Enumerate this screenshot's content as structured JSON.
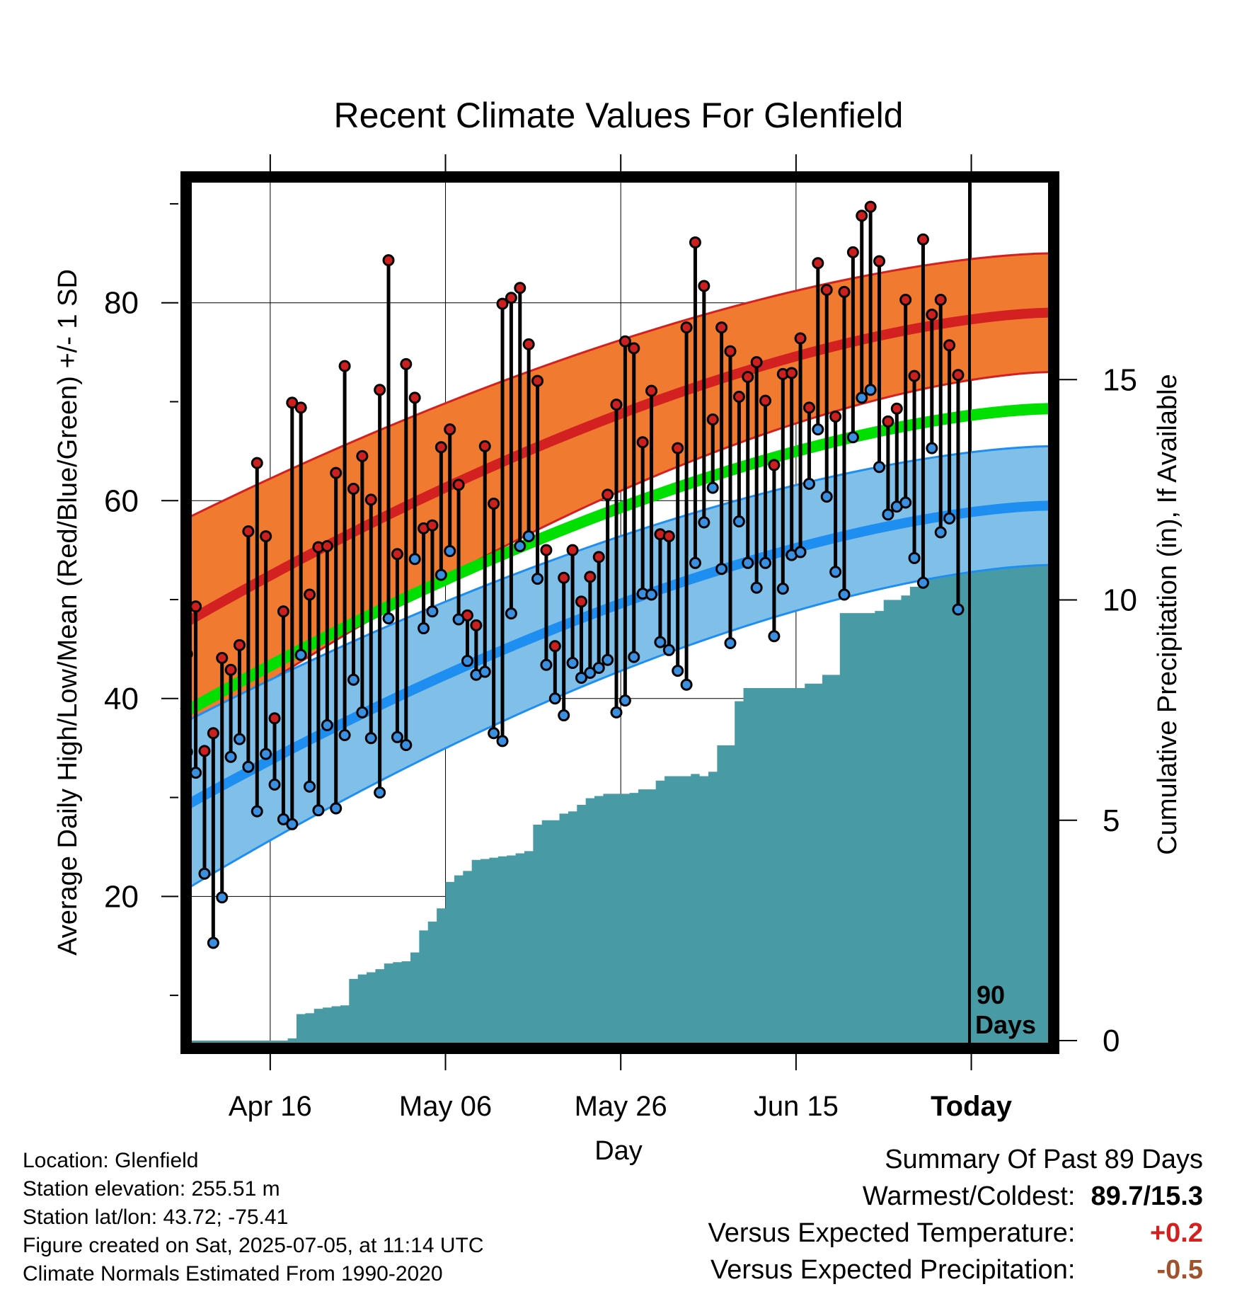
{
  "title": "Recent Climate Values For Glenfield",
  "axes": {
    "y_left_label": "Average Daily High/Low/Mean (Red/Blue/Green) +/- 1 SD",
    "y_right_label": "Cumulative Precipitation (in), If Available",
    "x_label": "Day",
    "x_ticks": [
      "Apr 16",
      "May 06",
      "May 26",
      "Jun 15",
      "Today"
    ],
    "y_left_ticks": [
      "20",
      "40",
      "60",
      "80"
    ],
    "y_right_ticks": [
      "0",
      "5",
      "10",
      "15"
    ],
    "days_annotation_num": "90",
    "days_annotation_text": "Days"
  },
  "info": {
    "location": "Location: Glenfield",
    "elevation": "Station elevation: 255.51 m",
    "latlon": "Station lat/lon: 43.72; -75.41",
    "created": "Figure created on Sat, 2025-07-05, at 11:14 UTC",
    "normals": "Climate Normals Estimated From 1990-2020"
  },
  "summary": {
    "title": "Summary Of Past 89 Days",
    "warmest_label": "Warmest/Coldest:",
    "warmest_value": "89.7/15.3",
    "temp_label": "Versus Expected Temperature:",
    "temp_value": "+0.2",
    "precip_label": "Versus Expected Precipitation:",
    "precip_value": "-0.5"
  },
  "colors": {
    "high_band": "#f07a30",
    "high_line": "#d32020",
    "low_band": "#80c0e8",
    "low_line": "#1e8ff0",
    "mean_line": "#00e000",
    "precip_fill": "#489aa4",
    "high_marker": "#cc2020",
    "low_marker": "#3a8fe0",
    "temp_value": "#d32020",
    "precip_value": "#a0522d"
  },
  "chart_data": {
    "type": "line",
    "x_start": "Apr 06",
    "x_today": "Jul 05",
    "x_end": "Jul 14",
    "ylim_left": [
      5,
      93
    ],
    "ylim_right": [
      0,
      20
    ],
    "normals_x_days": [
      0,
      99
    ],
    "normals": {
      "high_mean": [
        47.5,
        79.0
      ],
      "high_upper": [
        58.0,
        85.0
      ],
      "high_lower": [
        36.0,
        73.0
      ],
      "low_mean": [
        29.0,
        59.5
      ],
      "low_upper": [
        37.5,
        65.5
      ],
      "low_lower": [
        20.5,
        53.5
      ],
      "mean": [
        38.5,
        69.3
      ]
    },
    "daily_high": [
      44.5,
      49.3,
      34.7,
      36.5,
      44.1,
      42.9,
      45.4,
      56.9,
      63.8,
      56.4,
      38.0,
      48.8,
      69.9,
      69.4,
      50.5,
      55.3,
      55.4,
      62.8,
      73.6,
      61.2,
      64.5,
      60.1,
      71.2,
      84.3,
      54.6,
      73.8,
      70.4,
      57.2,
      57.5,
      65.4,
      67.2,
      61.6,
      48.4,
      47.4,
      65.5,
      59.7,
      79.9,
      80.5,
      81.5,
      75.8,
      72.1,
      55.0,
      45.3,
      52.2,
      55.0,
      49.8,
      52.3,
      54.3,
      60.6,
      69.7,
      76.1,
      75.4,
      65.9,
      71.1,
      56.6,
      56.4,
      65.3,
      77.5,
      86.1,
      81.7,
      68.2,
      77.5,
      75.1,
      70.5,
      72.5,
      74.0,
      70.1,
      63.6,
      72.8,
      72.9,
      76.4,
      69.4,
      84.0,
      81.3,
      68.5,
      81.1,
      85.1,
      88.8,
      89.7,
      84.2,
      68.0,
      69.3,
      80.3,
      72.6,
      86.4,
      78.8,
      80.3,
      75.7,
      72.7
    ],
    "daily_low": [
      34.6,
      32.5,
      22.3,
      15.3,
      19.9,
      34.1,
      35.9,
      33.1,
      28.6,
      34.4,
      31.3,
      27.8,
      27.3,
      44.4,
      31.1,
      28.7,
      37.3,
      28.9,
      36.3,
      41.9,
      38.6,
      36.0,
      30.5,
      48.1,
      36.1,
      35.3,
      54.1,
      47.1,
      48.8,
      52.5,
      54.9,
      48.0,
      43.8,
      42.4,
      42.7,
      36.5,
      35.7,
      48.6,
      55.4,
      56.4,
      52.1,
      43.4,
      40.0,
      38.3,
      43.6,
      42.1,
      42.6,
      43.1,
      43.9,
      38.6,
      39.8,
      44.2,
      50.6,
      50.5,
      45.7,
      44.9,
      42.8,
      41.4,
      53.7,
      57.8,
      61.3,
      53.1,
      45.6,
      57.9,
      53.7,
      51.2,
      53.7,
      46.3,
      51.1,
      54.5,
      54.8,
      61.7,
      67.2,
      60.4,
      52.8,
      50.5,
      66.4,
      70.4,
      71.2,
      63.4,
      58.6,
      59.4,
      59.8,
      54.2,
      51.7,
      65.3,
      56.8,
      58.2,
      49.0
    ],
    "cumulative_precip_in": [
      0,
      0,
      0,
      0,
      0,
      0,
      0,
      0,
      0,
      0,
      0,
      0,
      0.05,
      0.6,
      0.62,
      0.72,
      0.75,
      0.78,
      0.8,
      1.4,
      1.5,
      1.55,
      1.62,
      1.75,
      1.78,
      1.8,
      2.0,
      2.5,
      2.7,
      3.0,
      3.6,
      3.75,
      3.85,
      4.1,
      4.12,
      4.15,
      4.18,
      4.2,
      4.25,
      4.3,
      4.9,
      5.0,
      5.0,
      5.15,
      5.2,
      5.35,
      5.5,
      5.55,
      5.6,
      5.6,
      5.6,
      5.62,
      5.7,
      5.7,
      5.9,
      6.0,
      6.0,
      6.0,
      6.05,
      6.0,
      6.1,
      6.7,
      6.7,
      7.7,
      8.0,
      8.0,
      8.0,
      8.0,
      8.0,
      8.0,
      8.0,
      8.1,
      8.1,
      8.3,
      8.3,
      9.7,
      9.7,
      9.7,
      9.7,
      9.75,
      10.0,
      10.0,
      10.1,
      10.3,
      10.8,
      10.8,
      11.0,
      11.0,
      11.0,
      11.0,
      11.0,
      11.0,
      11.0,
      11.0,
      11.0,
      11.0,
      11.0,
      11.0,
      11.0,
      11.0
    ]
  }
}
